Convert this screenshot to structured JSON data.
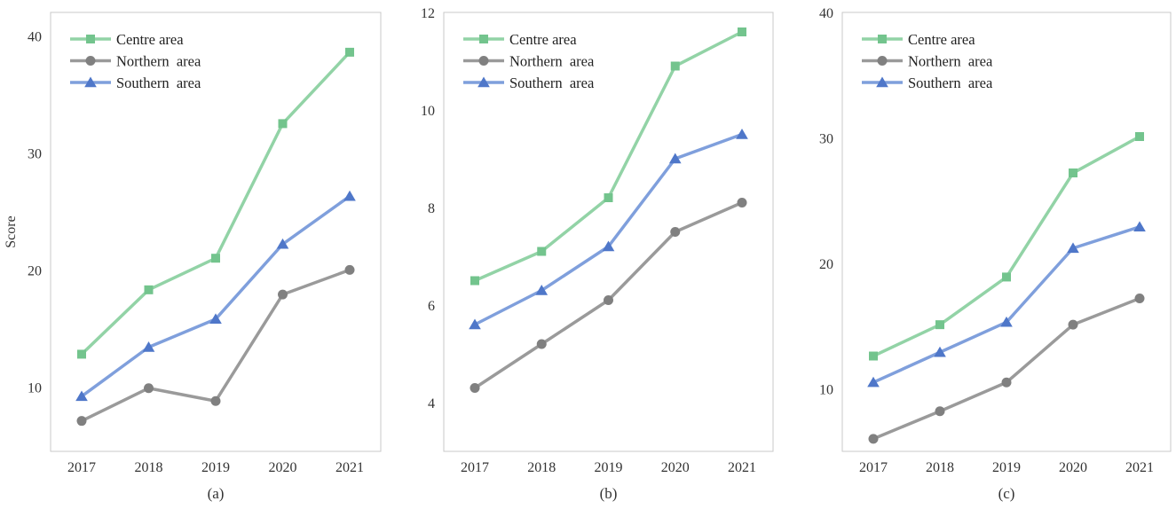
{
  "chart_data": [
    {
      "type": "line",
      "caption": "(a)",
      "ylabel": "Score",
      "xlabel": "",
      "categories": [
        "2017",
        "2018",
        "2019",
        "2020",
        "2021"
      ],
      "ylim": [
        4.5,
        42
      ],
      "yticks": [
        10,
        20,
        30,
        40
      ],
      "grid": false,
      "legend_position": "top-left",
      "series": [
        {
          "name": "Centre area",
          "marker": "square",
          "values": [
            12.8,
            18.3,
            21.0,
            32.5,
            38.6
          ]
        },
        {
          "name": "Northern  area",
          "marker": "circle",
          "values": [
            7.1,
            9.9,
            8.8,
            17.9,
            20.0
          ]
        },
        {
          "name": "Southern  area",
          "marker": "triangle",
          "values": [
            9.2,
            13.4,
            15.8,
            22.2,
            26.3
          ]
        }
      ]
    },
    {
      "type": "line",
      "caption": "(b)",
      "ylabel": "",
      "xlabel": "",
      "categories": [
        "2017",
        "2018",
        "2019",
        "2020",
        "2021"
      ],
      "ylim": [
        3.0,
        12.0
      ],
      "yticks": [
        4,
        6,
        8,
        10,
        12
      ],
      "grid": false,
      "legend_position": "top-left",
      "series": [
        {
          "name": "Centre area",
          "marker": "square",
          "values": [
            6.5,
            7.1,
            8.2,
            10.9,
            11.6
          ]
        },
        {
          "name": "Northern  area",
          "marker": "circle",
          "values": [
            4.3,
            5.2,
            6.1,
            7.5,
            8.1
          ]
        },
        {
          "name": "Southern  area",
          "marker": "triangle",
          "values": [
            5.6,
            6.3,
            7.2,
            9.0,
            9.5
          ]
        }
      ]
    },
    {
      "type": "line",
      "caption": "(c)",
      "ylabel": "",
      "xlabel": "",
      "categories": [
        "2017",
        "2018",
        "2019",
        "2020",
        "2021"
      ],
      "ylim": [
        5.0,
        40.0
      ],
      "yticks": [
        10,
        20,
        30,
        40
      ],
      "grid": false,
      "legend_position": "top-left",
      "series": [
        {
          "name": "Centre area",
          "marker": "square",
          "values": [
            12.6,
            15.1,
            18.9,
            27.2,
            30.1
          ]
        },
        {
          "name": "Northern  area",
          "marker": "circle",
          "values": [
            6.0,
            8.2,
            10.5,
            15.1,
            17.2
          ]
        },
        {
          "name": "Southern  area",
          "marker": "triangle",
          "values": [
            10.5,
            12.9,
            15.3,
            21.2,
            22.9
          ]
        }
      ]
    }
  ],
  "colors": {
    "line": [
      "#92d3a6",
      "#9a9a9a",
      "#7f9fdc"
    ],
    "marker": [
      "#73c48d",
      "#808080",
      "#4f77c9"
    ],
    "frame": "#c8c8c8",
    "text": "#333333"
  }
}
